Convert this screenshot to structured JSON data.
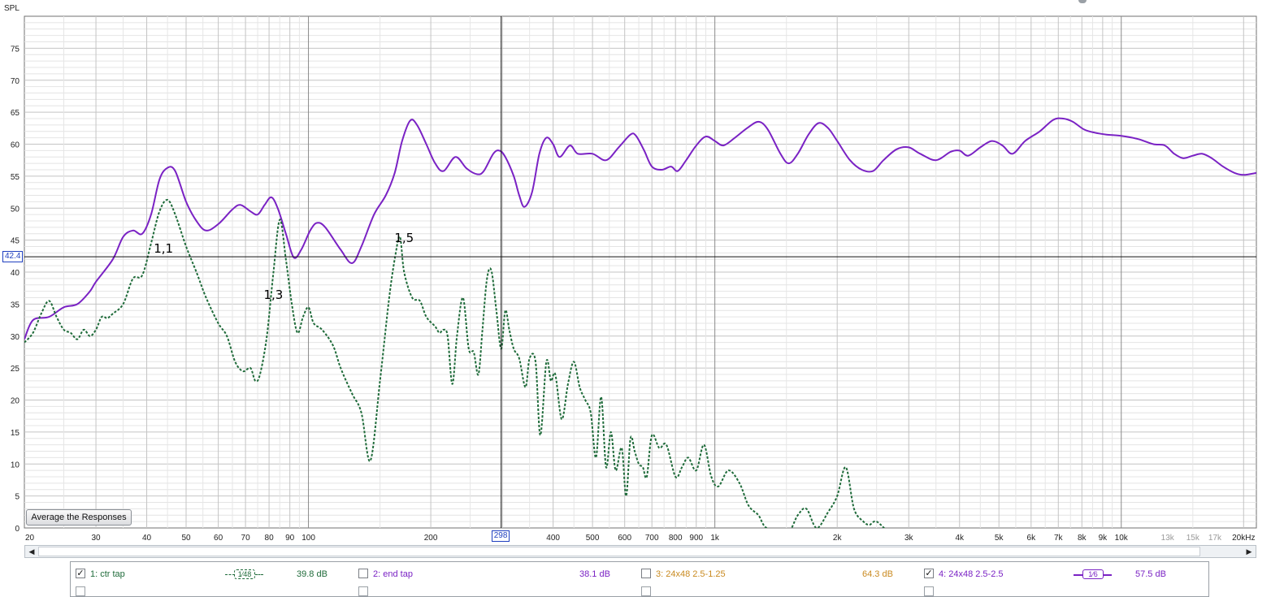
{
  "chart_data": {
    "type": "line",
    "ylabel": "SPL",
    "xscale": "log",
    "xlim": [
      20,
      21500
    ],
    "ylim": [
      0,
      80
    ],
    "grid": true,
    "x_ticks": [
      {
        "v": 20,
        "label": "20"
      },
      {
        "v": 30,
        "label": "30"
      },
      {
        "v": 40,
        "label": "40"
      },
      {
        "v": 50,
        "label": "50"
      },
      {
        "v": 60,
        "label": "60"
      },
      {
        "v": 70,
        "label": "70"
      },
      {
        "v": 80,
        "label": "80"
      },
      {
        "v": 90,
        "label": "90"
      },
      {
        "v": 100,
        "label": "100"
      },
      {
        "v": 200,
        "label": "200"
      },
      {
        "v": 400,
        "label": "400"
      },
      {
        "v": 500,
        "label": "500"
      },
      {
        "v": 600,
        "label": "600"
      },
      {
        "v": 700,
        "label": "700"
      },
      {
        "v": 800,
        "label": "800"
      },
      {
        "v": 900,
        "label": "900"
      },
      {
        "v": 1000,
        "label": "1k"
      },
      {
        "v": 2000,
        "label": "2k"
      },
      {
        "v": 3000,
        "label": "3k"
      },
      {
        "v": 4000,
        "label": "4k"
      },
      {
        "v": 5000,
        "label": "5k"
      },
      {
        "v": 6000,
        "label": "6k"
      },
      {
        "v": 7000,
        "label": "7k"
      },
      {
        "v": 8000,
        "label": "8k"
      },
      {
        "v": 9000,
        "label": "9k"
      },
      {
        "v": 10000,
        "label": "10k"
      },
      {
        "v": 13000,
        "label": "13k",
        "faded": true
      },
      {
        "v": 15000,
        "label": "15k",
        "faded": true
      },
      {
        "v": 17000,
        "label": "17k",
        "faded": true
      },
      {
        "v": 20000,
        "label": "20kHz"
      }
    ],
    "y_ticks": [
      5,
      10,
      15,
      20,
      25,
      30,
      35,
      40,
      45,
      50,
      55,
      60,
      65,
      70,
      75
    ],
    "y_zero_label": "0",
    "cursor": {
      "x": 298,
      "x_label": "298",
      "y": 42.4,
      "y_label": "42.4"
    },
    "annotations": [
      {
        "text": "1,1",
        "x": 44,
        "y": 43.5
      },
      {
        "text": "1,3",
        "x": 82,
        "y": 36.3
      },
      {
        "text": "1,5",
        "x": 172,
        "y": 45.2
      }
    ],
    "series": [
      {
        "name": "4: 24x48 2.5-2.5",
        "color": "#7a22c4",
        "style": "solid",
        "points": [
          [
            20,
            29.5
          ],
          [
            21,
            32.5
          ],
          [
            23,
            33
          ],
          [
            25,
            34.5
          ],
          [
            27,
            35
          ],
          [
            29,
            37
          ],
          [
            30,
            38.5
          ],
          [
            33,
            42
          ],
          [
            35,
            45.5
          ],
          [
            37,
            46.5
          ],
          [
            39,
            46
          ],
          [
            41,
            49
          ],
          [
            43,
            54.5
          ],
          [
            45,
            56.3
          ],
          [
            47,
            55.8
          ],
          [
            50,
            51
          ],
          [
            53,
            48
          ],
          [
            56,
            46.5
          ],
          [
            60,
            47.5
          ],
          [
            65,
            49.8
          ],
          [
            68,
            50.5
          ],
          [
            72,
            49.5
          ],
          [
            75,
            49
          ],
          [
            78,
            50.5
          ],
          [
            81,
            51.7
          ],
          [
            84,
            50
          ],
          [
            88,
            46
          ],
          [
            92,
            42.3
          ],
          [
            96,
            43.5
          ],
          [
            101,
            46.5
          ],
          [
            105,
            47.7
          ],
          [
            110,
            47
          ],
          [
            120,
            43.5
          ],
          [
            128,
            41.4
          ],
          [
            135,
            44
          ],
          [
            145,
            49
          ],
          [
            155,
            52
          ],
          [
            163,
            55.5
          ],
          [
            170,
            60.5
          ],
          [
            178,
            63.7
          ],
          [
            185,
            63
          ],
          [
            195,
            60
          ],
          [
            205,
            57
          ],
          [
            215,
            55.8
          ],
          [
            230,
            58
          ],
          [
            245,
            56.2
          ],
          [
            260,
            55.3
          ],
          [
            270,
            55.8
          ],
          [
            285,
            58.5
          ],
          [
            295,
            59
          ],
          [
            305,
            58
          ],
          [
            320,
            55
          ],
          [
            330,
            52
          ],
          [
            340,
            50.2
          ],
          [
            355,
            52.5
          ],
          [
            370,
            58.5
          ],
          [
            385,
            61
          ],
          [
            400,
            60
          ],
          [
            415,
            58
          ],
          [
            440,
            59.8
          ],
          [
            460,
            58.5
          ],
          [
            500,
            58.5
          ],
          [
            540,
            57.5
          ],
          [
            580,
            59.5
          ],
          [
            620,
            61.5
          ],
          [
            640,
            61.3
          ],
          [
            670,
            59
          ],
          [
            700,
            56.5
          ],
          [
            740,
            56
          ],
          [
            780,
            56.5
          ],
          [
            810,
            55.8
          ],
          [
            850,
            57.5
          ],
          [
            900,
            59.8
          ],
          [
            950,
            61.2
          ],
          [
            1000,
            60.5
          ],
          [
            1050,
            59.8
          ],
          [
            1120,
            61
          ],
          [
            1200,
            62.5
          ],
          [
            1280,
            63.5
          ],
          [
            1350,
            62.3
          ],
          [
            1450,
            58.5
          ],
          [
            1520,
            57
          ],
          [
            1600,
            58.5
          ],
          [
            1700,
            61.5
          ],
          [
            1800,
            63.3
          ],
          [
            1900,
            62.5
          ],
          [
            2000,
            60.5
          ],
          [
            2150,
            57.5
          ],
          [
            2300,
            56
          ],
          [
            2450,
            55.8
          ],
          [
            2600,
            57.5
          ],
          [
            2800,
            59.2
          ],
          [
            3000,
            59.5
          ],
          [
            3200,
            58.5
          ],
          [
            3500,
            57.5
          ],
          [
            3800,
            58.8
          ],
          [
            4000,
            59
          ],
          [
            4200,
            58.2
          ],
          [
            4500,
            59.5
          ],
          [
            4800,
            60.5
          ],
          [
            5100,
            59.8
          ],
          [
            5400,
            58.5
          ],
          [
            5800,
            60.5
          ],
          [
            6300,
            62
          ],
          [
            6800,
            63.8
          ],
          [
            7200,
            64
          ],
          [
            7600,
            63.5
          ],
          [
            8100,
            62.3
          ],
          [
            8600,
            61.8
          ],
          [
            9200,
            61.5
          ],
          [
            10000,
            61.3
          ],
          [
            11000,
            60.8
          ],
          [
            12000,
            60
          ],
          [
            12800,
            59.8
          ],
          [
            13500,
            58.5
          ],
          [
            14200,
            57.8
          ],
          [
            15000,
            58.2
          ],
          [
            15800,
            58.5
          ],
          [
            16700,
            57.8
          ],
          [
            17800,
            56.5
          ],
          [
            19000,
            55.5
          ],
          [
            20000,
            55.2
          ],
          [
            21500,
            55.5
          ]
        ]
      },
      {
        "name": "1: ctr tap",
        "color": "#1f6b3a",
        "style": "dashed",
        "points": [
          [
            20,
            29
          ],
          [
            21,
            30.5
          ],
          [
            22,
            33.5
          ],
          [
            23,
            35.5
          ],
          [
            24,
            33
          ],
          [
            25,
            31
          ],
          [
            26,
            30.5
          ],
          [
            27,
            29.5
          ],
          [
            28,
            31
          ],
          [
            29,
            30
          ],
          [
            30,
            31
          ],
          [
            31,
            33
          ],
          [
            32,
            32.8
          ],
          [
            33,
            33.5
          ],
          [
            35,
            35
          ],
          [
            37,
            39
          ],
          [
            39,
            39.5
          ],
          [
            41,
            44.5
          ],
          [
            43,
            49.5
          ],
          [
            45,
            51.3
          ],
          [
            47,
            49
          ],
          [
            50,
            44
          ],
          [
            53,
            40
          ],
          [
            56,
            36
          ],
          [
            60,
            32
          ],
          [
            63,
            30
          ],
          [
            66,
            26
          ],
          [
            69,
            24.5
          ],
          [
            72,
            25
          ],
          [
            74,
            23
          ],
          [
            76,
            24
          ],
          [
            79,
            30
          ],
          [
            82,
            40
          ],
          [
            85,
            48.2
          ],
          [
            88,
            42
          ],
          [
            91,
            35
          ],
          [
            94,
            30.5
          ],
          [
            97,
            33
          ],
          [
            100,
            34.5
          ],
          [
            103,
            32
          ],
          [
            108,
            31
          ],
          [
            115,
            28.5
          ],
          [
            120,
            25
          ],
          [
            128,
            21
          ],
          [
            135,
            18
          ],
          [
            142,
            10.5
          ],
          [
            150,
            23
          ],
          [
            158,
            36
          ],
          [
            164,
            43
          ],
          [
            168,
            45.5
          ],
          [
            172,
            40
          ],
          [
            180,
            36
          ],
          [
            188,
            35.5
          ],
          [
            195,
            33
          ],
          [
            205,
            31.5
          ],
          [
            210,
            30.5
          ],
          [
            215,
            31
          ],
          [
            220,
            30
          ],
          [
            226,
            22.5
          ],
          [
            232,
            30
          ],
          [
            240,
            36
          ],
          [
            248,
            28
          ],
          [
            255,
            27.5
          ],
          [
            262,
            24
          ],
          [
            268,
            31
          ],
          [
            275,
            39
          ],
          [
            282,
            40.2
          ],
          [
            290,
            34
          ],
          [
            298,
            28
          ],
          [
            305,
            34
          ],
          [
            312,
            31
          ],
          [
            320,
            28
          ],
          [
            330,
            26.5
          ],
          [
            342,
            22
          ],
          [
            350,
            26.5
          ],
          [
            362,
            26
          ],
          [
            372,
            14.5
          ],
          [
            385,
            26
          ],
          [
            395,
            23
          ],
          [
            405,
            24
          ],
          [
            420,
            17
          ],
          [
            435,
            22.5
          ],
          [
            450,
            26
          ],
          [
            465,
            22
          ],
          [
            480,
            20
          ],
          [
            495,
            18
          ],
          [
            510,
            11
          ],
          [
            525,
            20.5
          ],
          [
            540,
            9.5
          ],
          [
            555,
            15
          ],
          [
            570,
            9
          ],
          [
            590,
            12.5
          ],
          [
            605,
            5
          ],
          [
            620,
            14
          ],
          [
            635,
            12
          ],
          [
            650,
            10
          ],
          [
            665,
            9.5
          ],
          [
            680,
            8
          ],
          [
            700,
            14.5
          ],
          [
            730,
            12.5
          ],
          [
            760,
            13
          ],
          [
            800,
            8
          ],
          [
            830,
            9.5
          ],
          [
            860,
            11
          ],
          [
            900,
            9
          ],
          [
            940,
            13
          ],
          [
            980,
            8
          ],
          [
            1020,
            6.5
          ],
          [
            1080,
            9
          ],
          [
            1150,
            7
          ],
          [
            1210,
            3.5
          ],
          [
            1280,
            2
          ],
          [
            1340,
            0
          ],
          [
            1500,
            -1
          ],
          [
            1600,
            2
          ],
          [
            1680,
            3
          ],
          [
            1780,
            0
          ],
          [
            1900,
            2.5
          ],
          [
            2000,
            5
          ],
          [
            2100,
            9.5
          ],
          [
            2200,
            3
          ],
          [
            2320,
            1
          ],
          [
            2400,
            0.5
          ],
          [
            2500,
            1
          ],
          [
            2700,
            -1
          ]
        ]
      }
    ]
  },
  "ui": {
    "average_button_label": "Average the Responses",
    "scroll_left": "◀",
    "scroll_right": "▶"
  },
  "legend": {
    "items": [
      {
        "label": "1: ctr tap",
        "value": "39.8 dB",
        "checked": true,
        "check_mark": "✓",
        "color": "#1f6b3a",
        "value_color": "#1f6b3a",
        "smoothing": "1⁄48",
        "dashed": true
      },
      {
        "label": "2: end tap",
        "value": "38.1 dB",
        "checked": false,
        "check_mark": "",
        "color": "#7a22c4",
        "value_color": "#7a22c4"
      },
      {
        "label": "3: 24x48 2.5-1.25",
        "value": "64.3 dB",
        "checked": false,
        "check_mark": "",
        "color": "#c98a20",
        "value_color": "#c98a20"
      },
      {
        "label": "4: 24x48 2.5-2.5",
        "value": "57.5 dB",
        "checked": true,
        "check_mark": "✓",
        "color": "#7a22c4",
        "value_color": "#7a22c4",
        "smoothing": "1⁄6",
        "dashed": false
      }
    ]
  }
}
